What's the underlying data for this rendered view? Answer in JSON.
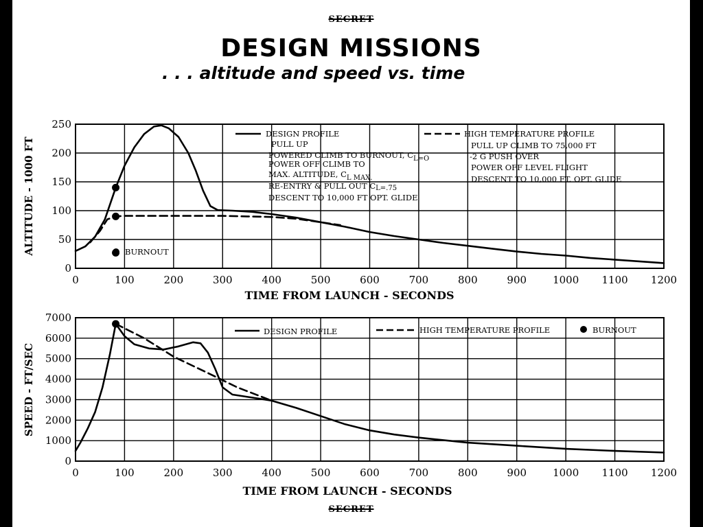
{
  "header": {
    "classification_top": "SECRET",
    "title": "DESIGN MISSIONS",
    "subtitle": ". . . altitude and speed vs. time"
  },
  "footer": {
    "classification_bottom": "SECRET"
  },
  "chart_data": [
    {
      "type": "line",
      "xlabel": "TIME FROM LAUNCH - SECONDS",
      "ylabel": "ALTITUDE - 1000 FT",
      "xlim": [
        0,
        1200
      ],
      "ylim": [
        0,
        250
      ],
      "xticks": [
        0,
        100,
        200,
        300,
        400,
        500,
        600,
        700,
        800,
        900,
        1000,
        1100,
        1200
      ],
      "yticks": [
        0,
        50,
        100,
        150,
        200,
        250
      ],
      "grid": true,
      "legend": {
        "design_title": "DESIGN PROFILE",
        "design_lines": [
          "PULL UP",
          "POWERED CLIMB TO BURNOUT, C",
          "POWER OFF CLIMB TO",
          "MAX. ALTITUDE, C",
          "RE-ENTRY & PULL OUT  C",
          "DESCENT TO 10,000 FT OPT. GLIDE"
        ],
        "design_subscripts": [
          "L=O",
          "L MAX.",
          "L=.75"
        ],
        "hightemp_title": "HIGH TEMPERATURE PROFILE",
        "hightemp_lines": [
          "PULL UP CLIMB TO 75,000 FT",
          "-2 G PUSH OVER",
          "POWER OFF   LEVEL FLIGHT",
          "DESCENT TO 10,000 FT.  OPT. GLIDE"
        ],
        "burnout": "BURNOUT"
      },
      "series": [
        {
          "name": "DESIGN PROFILE",
          "style": "solid",
          "points": [
            [
              0,
              30
            ],
            [
              20,
              38
            ],
            [
              40,
              55
            ],
            [
              60,
              85
            ],
            [
              70,
              110
            ],
            [
              82,
              140
            ],
            [
              100,
              178
            ],
            [
              120,
              210
            ],
            [
              140,
              233
            ],
            [
              160,
              246
            ],
            [
              175,
              248
            ],
            [
              190,
              243
            ],
            [
              210,
              228
            ],
            [
              230,
              200
            ],
            [
              245,
              170
            ],
            [
              260,
              135
            ],
            [
              275,
              108
            ],
            [
              290,
              101
            ],
            [
              320,
              100
            ],
            [
              360,
              98
            ],
            [
              400,
              94
            ],
            [
              450,
              88
            ],
            [
              500,
              80
            ],
            [
              550,
              72
            ],
            [
              600,
              63
            ],
            [
              650,
              56
            ],
            [
              700,
              50
            ],
            [
              750,
              44
            ],
            [
              800,
              39
            ],
            [
              850,
              34
            ],
            [
              900,
              29
            ],
            [
              950,
              25
            ],
            [
              1000,
              22
            ],
            [
              1050,
              18
            ],
            [
              1100,
              15
            ],
            [
              1150,
              12
            ],
            [
              1200,
              9
            ]
          ]
        },
        {
          "name": "HIGH TEMPERATURE PROFILE",
          "style": "dashed",
          "points": [
            [
              30,
              45
            ],
            [
              50,
              65
            ],
            [
              65,
              85
            ],
            [
              82,
              90
            ],
            [
              100,
              91
            ],
            [
              200,
              91
            ],
            [
              300,
              91
            ],
            [
              350,
              90
            ],
            [
              400,
              89
            ],
            [
              450,
              86
            ],
            [
              500,
              80
            ],
            [
              540,
              75
            ]
          ]
        }
      ],
      "burnout_points": [
        [
          82,
          140
        ],
        [
          82,
          90
        ],
        [
          82,
          27
        ]
      ]
    },
    {
      "type": "line",
      "xlabel": "TIME FROM LAUNCH - SECONDS",
      "ylabel": "SPEED - FT/SEC",
      "xlim": [
        0,
        1200
      ],
      "ylim": [
        0,
        7000
      ],
      "xticks": [
        0,
        100,
        200,
        300,
        400,
        500,
        600,
        700,
        800,
        900,
        1000,
        1100,
        1200
      ],
      "yticks": [
        0,
        1000,
        2000,
        3000,
        4000,
        5000,
        6000,
        7000
      ],
      "grid": true,
      "legend": {
        "design": "DESIGN PROFILE",
        "hightemp": "HIGH TEMPERATURE PROFILE",
        "burnout": "BURNOUT"
      },
      "series": [
        {
          "name": "DESIGN PROFILE",
          "style": "solid",
          "points": [
            [
              0,
              500
            ],
            [
              10,
              900
            ],
            [
              25,
              1600
            ],
            [
              40,
              2400
            ],
            [
              55,
              3600
            ],
            [
              70,
              5200
            ],
            [
              82,
              6700
            ],
            [
              100,
              6100
            ],
            [
              120,
              5700
            ],
            [
              150,
              5500
            ],
            [
              180,
              5450
            ],
            [
              210,
              5600
            ],
            [
              240,
              5800
            ],
            [
              255,
              5750
            ],
            [
              270,
              5300
            ],
            [
              285,
              4500
            ],
            [
              300,
              3600
            ],
            [
              320,
              3250
            ],
            [
              360,
              3100
            ],
            [
              400,
              2950
            ],
            [
              450,
              2600
            ],
            [
              500,
              2200
            ],
            [
              550,
              1800
            ],
            [
              600,
              1500
            ],
            [
              650,
              1300
            ],
            [
              700,
              1150
            ],
            [
              800,
              900
            ],
            [
              900,
              750
            ],
            [
              1000,
              600
            ],
            [
              1100,
              500
            ],
            [
              1200,
              420
            ]
          ]
        },
        {
          "name": "HIGH TEMPERATURE PROFILE",
          "style": "dashed",
          "points": [
            [
              82,
              6700
            ],
            [
              140,
              6000
            ],
            [
              200,
              5100
            ],
            [
              270,
              4300
            ],
            [
              330,
              3600
            ],
            [
              400,
              2950
            ]
          ]
        }
      ],
      "burnout_points": [
        [
          82,
          6700
        ]
      ]
    }
  ]
}
